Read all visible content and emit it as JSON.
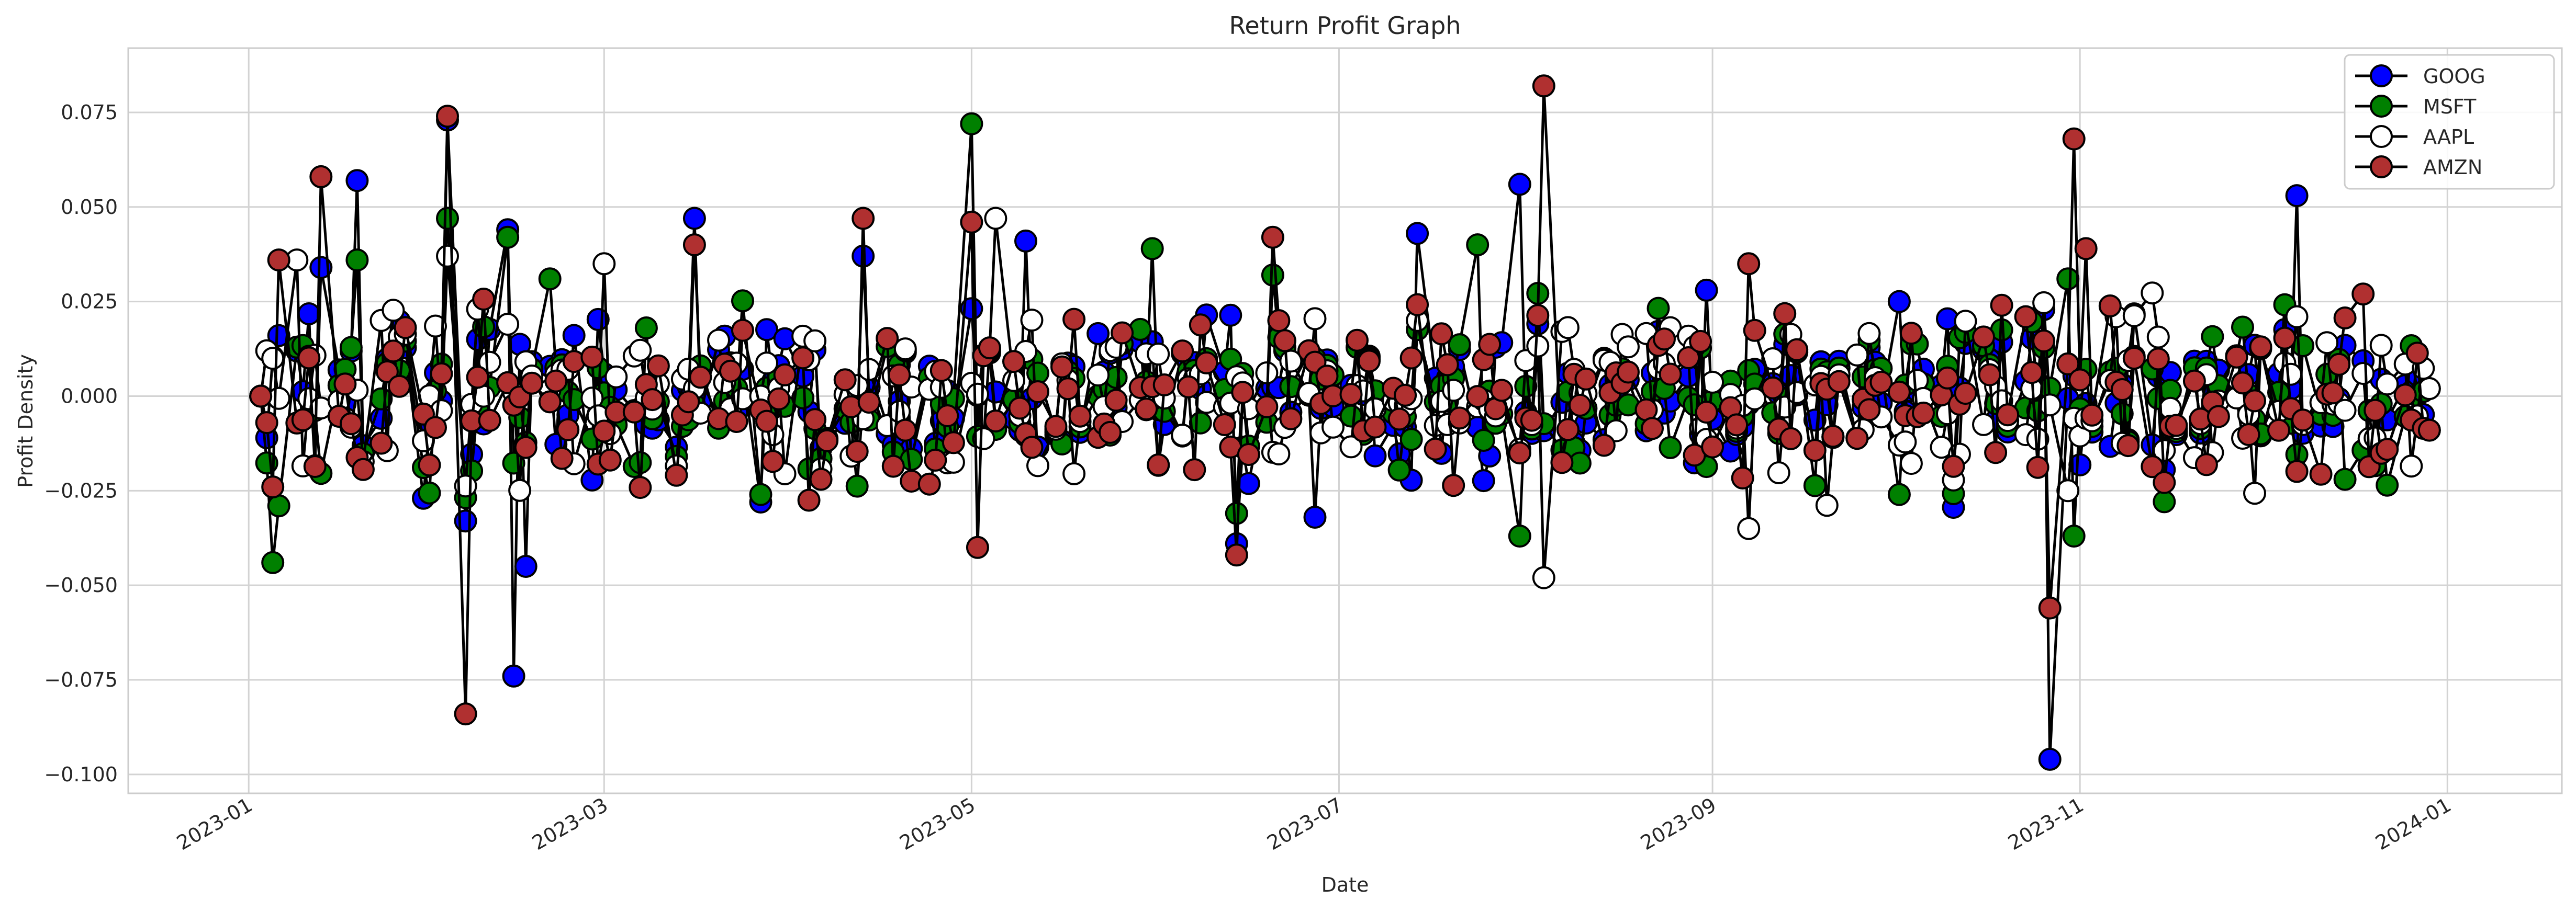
{
  "chart_data": {
    "type": "line",
    "title": "Return Profit Graph",
    "xlabel": "Date",
    "ylabel": "Profit Density",
    "grid": true,
    "legend_position": "top-right",
    "x_start": "2023-01-03",
    "xlim": [
      "2022-12-12",
      "2024-01-20"
    ],
    "ylim": [
      -0.105,
      0.092
    ],
    "x_ticks": [
      "2023-01",
      "2023-03",
      "2023-05",
      "2023-07",
      "2023-09",
      "2023-11",
      "2024-01"
    ],
    "y_ticks": [
      "−0.100",
      "−0.075",
      "−0.050",
      "−0.025",
      "0.000",
      "0.025",
      "0.050",
      "0.075"
    ],
    "series": [
      {
        "name": "GOOG",
        "color": "#0000ff",
        "key_points": [
          [
            "2023-01-03",
            0.0
          ],
          [
            "2023-01-04",
            -0.011
          ],
          [
            "2023-01-06",
            0.016
          ],
          [
            "2023-01-13",
            0.034
          ],
          [
            "2023-01-19",
            0.057
          ],
          [
            "2023-01-30",
            -0.027
          ],
          [
            "2023-02-03",
            0.073
          ],
          [
            "2023-02-06",
            -0.033
          ],
          [
            "2023-02-13",
            0.044
          ],
          [
            "2023-02-14",
            -0.074
          ],
          [
            "2023-02-16",
            -0.045
          ],
          [
            "2023-03-16",
            0.047
          ],
          [
            "2023-03-27",
            -0.028
          ],
          [
            "2023-04-13",
            0.037
          ],
          [
            "2023-05-10",
            0.041
          ],
          [
            "2023-06-14",
            -0.039
          ],
          [
            "2023-06-27",
            -0.032
          ],
          [
            "2023-07-14",
            0.043
          ],
          [
            "2023-07-31",
            0.056
          ],
          [
            "2023-08-31",
            0.028
          ],
          [
            "2023-10-02",
            0.025
          ],
          [
            "2023-10-27",
            -0.096
          ],
          [
            "2023-12-07",
            0.053
          ],
          [
            "2023-12-29",
            -0.009
          ]
        ]
      },
      {
        "name": "MSFT",
        "color": "#008000",
        "key_points": [
          [
            "2023-01-03",
            0.0
          ],
          [
            "2023-01-05",
            -0.044
          ],
          [
            "2023-01-06",
            -0.029
          ],
          [
            "2023-01-19",
            0.036
          ],
          [
            "2023-02-03",
            0.047
          ],
          [
            "2023-02-13",
            0.042
          ],
          [
            "2023-02-20",
            0.031
          ],
          [
            "2023-03-27",
            -0.026
          ],
          [
            "2023-05-01",
            0.072
          ],
          [
            "2023-05-31",
            0.039
          ],
          [
            "2023-06-14",
            -0.031
          ],
          [
            "2023-06-20",
            0.032
          ],
          [
            "2023-07-24",
            0.04
          ],
          [
            "2023-07-31",
            -0.037
          ],
          [
            "2023-10-02",
            -0.026
          ],
          [
            "2023-10-30",
            0.031
          ],
          [
            "2023-10-31",
            -0.037
          ],
          [
            "2023-12-15",
            -0.022
          ],
          [
            "2023-12-29",
            0.002
          ]
        ]
      },
      {
        "name": "AAPL",
        "color": "#ffffff",
        "key_points": [
          [
            "2023-01-03",
            0.0
          ],
          [
            "2023-01-05",
            0.01
          ],
          [
            "2023-01-09",
            0.036
          ],
          [
            "2023-01-23",
            0.02
          ],
          [
            "2023-02-03",
            0.037
          ],
          [
            "2023-02-13",
            0.019
          ],
          [
            "2023-03-01",
            0.035
          ],
          [
            "2023-05-05",
            0.047
          ],
          [
            "2023-07-14",
            0.02
          ],
          [
            "2023-08-04",
            -0.048
          ],
          [
            "2023-09-07",
            -0.035
          ],
          [
            "2023-10-30",
            -0.025
          ],
          [
            "2023-11-07",
            0.021
          ],
          [
            "2023-12-07",
            0.021
          ],
          [
            "2023-12-29",
            0.002
          ]
        ]
      },
      {
        "name": "AMZN",
        "color": "#b03030",
        "key_points": [
          [
            "2023-01-03",
            0.0
          ],
          [
            "2023-01-04",
            -0.007
          ],
          [
            "2023-01-05",
            -0.024
          ],
          [
            "2023-01-06",
            0.036
          ],
          [
            "2023-01-13",
            0.058
          ],
          [
            "2023-02-03",
            0.074
          ],
          [
            "2023-02-06",
            -0.084
          ],
          [
            "2023-03-16",
            0.04
          ],
          [
            "2023-04-13",
            0.047
          ],
          [
            "2023-05-01",
            0.046
          ],
          [
            "2023-05-02",
            -0.04
          ],
          [
            "2023-06-14",
            -0.042
          ],
          [
            "2023-06-20",
            0.042
          ],
          [
            "2023-08-04",
            0.082
          ],
          [
            "2023-09-07",
            0.035
          ],
          [
            "2023-10-23",
            0.021
          ],
          [
            "2023-10-27",
            -0.056
          ],
          [
            "2023-10-31",
            0.068
          ],
          [
            "2023-11-02",
            0.039
          ],
          [
            "2023-12-18",
            0.027
          ],
          [
            "2023-12-29",
            -0.009
          ]
        ]
      }
    ]
  }
}
